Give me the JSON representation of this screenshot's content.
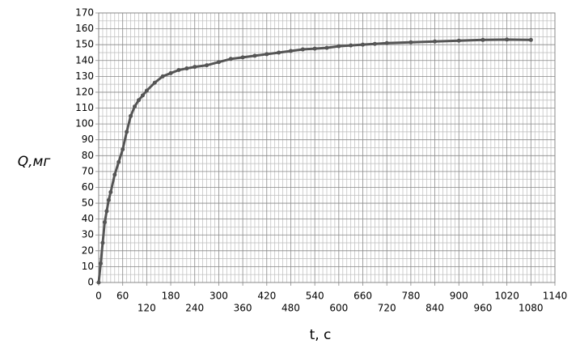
{
  "chart_data": {
    "type": "line",
    "x_label": "t, c",
    "y_label": "Q,мг",
    "x": [
      0,
      5,
      10,
      15,
      20,
      25,
      30,
      40,
      50,
      60,
      70,
      80,
      90,
      100,
      110,
      120,
      140,
      160,
      180,
      200,
      220,
      240,
      270,
      300,
      330,
      360,
      390,
      420,
      450,
      480,
      510,
      540,
      570,
      600,
      630,
      660,
      690,
      720,
      780,
      840,
      900,
      960,
      1020,
      1080
    ],
    "series": [
      {
        "name": "Q",
        "color": "#555555",
        "values": [
          0,
          12,
          25,
          38,
          45,
          52,
          57,
          68,
          76,
          84,
          95,
          105,
          111,
          115,
          118,
          121,
          126,
          130,
          132,
          134,
          135,
          136,
          137,
          139,
          141,
          142,
          143,
          144,
          145,
          146,
          147,
          147.5,
          148,
          149,
          149.5,
          150,
          150.5,
          151,
          151.5,
          152,
          152.5,
          153,
          153.2,
          153
        ]
      }
    ],
    "xlim": [
      0,
      1140
    ],
    "xticks": [
      0,
      60,
      120,
      180,
      240,
      300,
      360,
      420,
      480,
      540,
      600,
      660,
      720,
      780,
      840,
      900,
      960,
      1020,
      1080,
      1140
    ],
    "ylim": [
      0,
      170
    ],
    "yticks": [
      0,
      10,
      20,
      30,
      40,
      50,
      60,
      70,
      80,
      90,
      100,
      110,
      120,
      130,
      140,
      150,
      160,
      170
    ],
    "grid": true
  }
}
